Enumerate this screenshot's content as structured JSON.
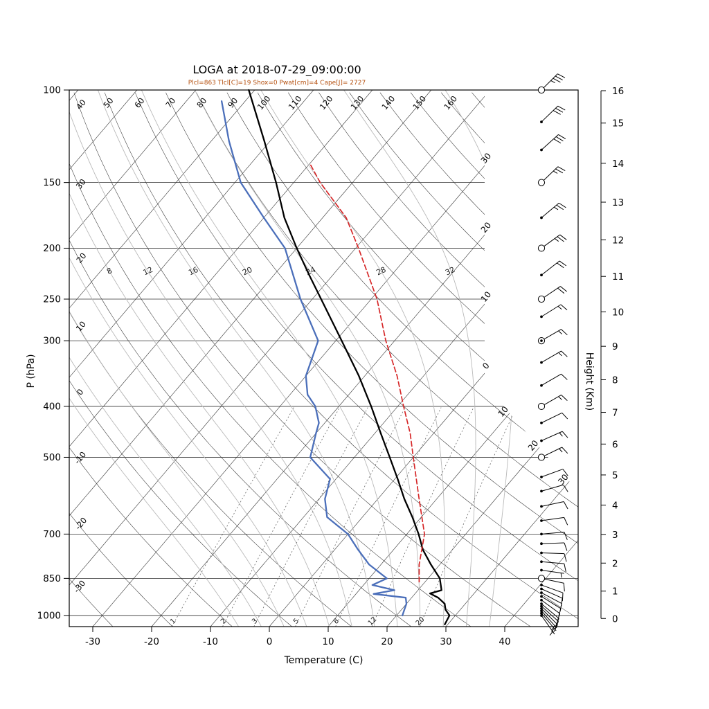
{
  "title": "LOGA at 2018-07-29_09:00:00",
  "subtitle": "Plcl=863 Tlcl[C]=19 Shox=0 Pwat[cm]=4 Cape[J]= 2727",
  "colors": {
    "subtitle_text": "#b5500f",
    "frame": "#000000",
    "isobar": "#333333",
    "isotherm": "#333333",
    "dry_adiabat": "#333333",
    "moist_adiabat": "#b9b9b9",
    "mixing_ratio": "#666666",
    "temperature": "#000000",
    "dewpoint": "#4b6fba",
    "parcel": "#d62728",
    "wind_barb": "#000000"
  },
  "chart_data": {
    "type": "line",
    "subtype": "skew-t-log-p-sounding",
    "title": "LOGA at 2018-07-29_09:00:00",
    "subtitle": "Plcl=863 Tlcl[C]=19 Shox=0 Pwat[cm]=4 Cape[J]= 2727",
    "xlabel": "Temperature (C)",
    "ylabel_left": "P (hPa)",
    "ylabel_right": "Height (Km)",
    "p_range_hpa": [
      100,
      1050
    ],
    "x_ticks_c": [
      -30,
      -20,
      -10,
      0,
      10,
      20,
      30,
      40
    ],
    "pressure_ticks_hpa": [
      100,
      150,
      200,
      250,
      300,
      400,
      500,
      700,
      850,
      1000
    ],
    "height_ticks_km": [
      0,
      1,
      2,
      3,
      4,
      5,
      6,
      7,
      8,
      9,
      10,
      11,
      12,
      13,
      14,
      15,
      16
    ],
    "grid": {
      "isotherms_c": [
        -110,
        -100,
        -90,
        -80,
        -70,
        -60,
        -50,
        -40,
        -30,
        -20,
        -10,
        0,
        10,
        20,
        30,
        40
      ],
      "isotherm_right_labels": {
        "values": [
          -30,
          -20,
          -10,
          0,
          10,
          20,
          30
        ],
        "texts": [
          "30",
          "20",
          "10",
          "0",
          "10",
          "20",
          "30"
        ]
      },
      "dry_adiabats_theta_c": [
        -30,
        -20,
        -10,
        0,
        10,
        20,
        30,
        40,
        50,
        60,
        70,
        80,
        90,
        100,
        110,
        120,
        130,
        140,
        150,
        160,
        170,
        180,
        190,
        200
      ],
      "dry_adiabat_top_labels": [
        50,
        60,
        70,
        80,
        90,
        100,
        110,
        120,
        130,
        140,
        150,
        160
      ],
      "dry_adiabat_left_labels": [
        "40",
        "30",
        "20",
        "10",
        "0",
        "-10",
        "-20",
        "-30"
      ],
      "moist_adiabats_tw_c": [
        -8,
        -4,
        0,
        4,
        8,
        12,
        16,
        20,
        24,
        28,
        32,
        36
      ],
      "moist_adiabat_labels": [
        8,
        12,
        16,
        20,
        24,
        28,
        32
      ],
      "mixing_ratio_g_kg": [
        1,
        2,
        3,
        5,
        8,
        12,
        20
      ]
    },
    "series": [
      {
        "name": "temperature",
        "color": "#000000",
        "line_style": "solid",
        "width": 2.3,
        "points": [
          [
            1040,
            29.5
          ],
          [
            1000,
            29
          ],
          [
            975,
            27.5
          ],
          [
            950,
            26.5
          ],
          [
            925,
            24.5
          ],
          [
            908,
            22.5
          ],
          [
            895,
            24
          ],
          [
            850,
            22
          ],
          [
            800,
            18.5
          ],
          [
            750,
            15
          ],
          [
            700,
            12
          ],
          [
            650,
            8.5
          ],
          [
            600,
            4.5
          ],
          [
            550,
            0.5
          ],
          [
            500,
            -4
          ],
          [
            450,
            -9
          ],
          [
            400,
            -14.5
          ],
          [
            350,
            -21
          ],
          [
            300,
            -29
          ],
          [
            250,
            -38.5
          ],
          [
            225,
            -44
          ],
          [
            200,
            -50
          ],
          [
            175,
            -56.5
          ],
          [
            150,
            -63
          ],
          [
            125,
            -71
          ],
          [
            100,
            -81
          ]
        ]
      },
      {
        "name": "dewpoint",
        "color": "#4b6fba",
        "line_style": "solid",
        "width": 2.3,
        "points": [
          [
            1000,
            21
          ],
          [
            975,
            20.5
          ],
          [
            950,
            20
          ],
          [
            925,
            19
          ],
          [
            910,
            13
          ],
          [
            895,
            16
          ],
          [
            875,
            11.5
          ],
          [
            850,
            13
          ],
          [
            800,
            8
          ],
          [
            750,
            4
          ],
          [
            700,
            0
          ],
          [
            650,
            -6
          ],
          [
            600,
            -9
          ],
          [
            550,
            -11
          ],
          [
            500,
            -17.5
          ],
          [
            450,
            -20
          ],
          [
            430,
            -21
          ],
          [
            400,
            -24
          ],
          [
            380,
            -27
          ],
          [
            350,
            -30
          ],
          [
            300,
            -33
          ],
          [
            250,
            -42
          ],
          [
            200,
            -52
          ],
          [
            175,
            -60
          ],
          [
            150,
            -69
          ],
          [
            125,
            -77
          ],
          [
            105,
            -84
          ]
        ]
      },
      {
        "name": "parcel",
        "color": "#d62728",
        "line_style": "dashed",
        "width": 1.7,
        "points": [
          [
            863,
            19
          ],
          [
            800,
            16.5
          ],
          [
            700,
            13
          ],
          [
            600,
            7
          ],
          [
            500,
            0
          ],
          [
            450,
            -4
          ],
          [
            400,
            -9
          ],
          [
            350,
            -14.5
          ],
          [
            300,
            -21.5
          ],
          [
            250,
            -29
          ],
          [
            200,
            -39.5
          ],
          [
            175,
            -46
          ],
          [
            150,
            -55.5
          ],
          [
            138,
            -60
          ]
        ]
      }
    ],
    "wind_barb_format": [
      "p_hpa",
      "speed_kt",
      "dir_from_deg"
    ],
    "wind_barbs": [
      [
        1000,
        5,
        145
      ],
      [
        990,
        5,
        140
      ],
      [
        980,
        5,
        138
      ],
      [
        970,
        10,
        135
      ],
      [
        960,
        10,
        132
      ],
      [
        950,
        10,
        130
      ],
      [
        935,
        10,
        126
      ],
      [
        920,
        10,
        122
      ],
      [
        905,
        10,
        118
      ],
      [
        890,
        10,
        114
      ],
      [
        875,
        10,
        110
      ],
      [
        850,
        10,
        102
      ],
      [
        820,
        5,
        98
      ],
      [
        790,
        10,
        95
      ],
      [
        760,
        10,
        92
      ],
      [
        730,
        10,
        88
      ],
      [
        700,
        10,
        85
      ],
      [
        660,
        10,
        82
      ],
      [
        620,
        10,
        78
      ],
      [
        580,
        10,
        74
      ],
      [
        545,
        10,
        70
      ],
      [
        500,
        15,
        64
      ],
      [
        465,
        15,
        66
      ],
      [
        430,
        10,
        64
      ],
      [
        400,
        15,
        60
      ],
      [
        365,
        10,
        60
      ],
      [
        330,
        15,
        60
      ],
      [
        300,
        15,
        60
      ],
      [
        270,
        15,
        58
      ],
      [
        250,
        20,
        56
      ],
      [
        225,
        20,
        52
      ],
      [
        200,
        25,
        54
      ],
      [
        175,
        25,
        50
      ],
      [
        150,
        25,
        46
      ],
      [
        130,
        30,
        48
      ],
      [
        115,
        30,
        46
      ],
      [
        100,
        35,
        45
      ]
    ],
    "barb_circle_levels_hpa": [
      100,
      150,
      200,
      250,
      300,
      400,
      500,
      850
    ],
    "barb_dot_in_circle_hpa": [
      300
    ]
  }
}
